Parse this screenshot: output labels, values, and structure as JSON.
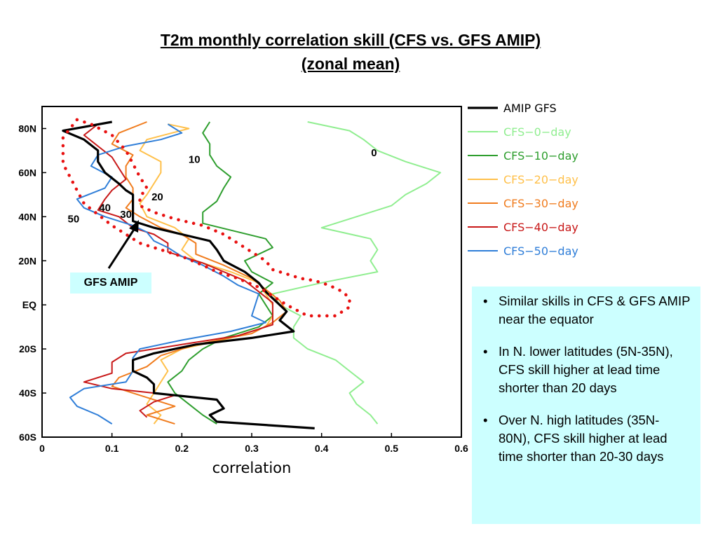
{
  "slide": {
    "title_line1": "T2m monthly correlation skill (CFS vs. GFS AMIP)",
    "title_line2": "(zonal mean)",
    "notes": [
      "Similar skills in CFS & GFS AMIP near the equator",
      "In N. lower latitudes (5N-35N), CFS skill higher at lead time shorter than 20 days",
      "Over N. high latitudes (35N-80N), CFS skill higher at lead time shorter than 20-30 days"
    ],
    "callout": "GFS AMIP"
  },
  "chart_data": {
    "type": "line",
    "title": "",
    "xlabel": "correlation",
    "ylabel": "",
    "xlim": [
      0,
      0.6
    ],
    "ylim": [
      -60,
      90
    ],
    "x_ticks": [
      0,
      0.1,
      0.2,
      0.3,
      0.4,
      0.5,
      0.6
    ],
    "x_tick_labels": [
      "0",
      "0.1",
      "0.2",
      "0.3",
      "0.4",
      "0.5",
      "0.6"
    ],
    "y_ticks": [
      -60,
      -40,
      -20,
      0,
      20,
      40,
      60,
      80
    ],
    "y_tick_labels": [
      "60S",
      "40S",
      "20S",
      "EQ",
      "20N",
      "40N",
      "60N",
      "80N"
    ],
    "legend_position": "right",
    "grid": false,
    "series": [
      {
        "name": "AMIP  GFS",
        "color": "#000000",
        "points": [
          [
            0.1,
            83
          ],
          [
            0.03,
            79
          ],
          [
            0.06,
            75
          ],
          [
            0.08,
            70
          ],
          [
            0.08,
            65
          ],
          [
            0.09,
            60
          ],
          [
            0.11,
            55
          ],
          [
            0.12,
            52
          ],
          [
            0.13,
            50
          ],
          [
            0.13,
            46
          ],
          [
            0.13,
            42
          ],
          [
            0.13,
            38
          ],
          [
            0.16,
            35
          ],
          [
            0.2,
            32
          ],
          [
            0.24,
            29
          ],
          [
            0.25,
            25
          ],
          [
            0.26,
            20
          ],
          [
            0.29,
            15
          ],
          [
            0.31,
            10
          ],
          [
            0.32,
            6
          ],
          [
            0.33,
            3
          ],
          [
            0.34,
            0
          ],
          [
            0.35,
            -3
          ],
          [
            0.34,
            -7
          ],
          [
            0.36,
            -12
          ],
          [
            0.3,
            -15
          ],
          [
            0.22,
            -18
          ],
          [
            0.16,
            -22
          ],
          [
            0.13,
            -25
          ],
          [
            0.13,
            -30
          ],
          [
            0.15,
            -33
          ],
          [
            0.16,
            -36
          ],
          [
            0.16,
            -40
          ],
          [
            0.25,
            -43
          ],
          [
            0.26,
            -47
          ],
          [
            0.24,
            -50
          ],
          [
            0.25,
            -53
          ],
          [
            0.39,
            -56
          ]
        ]
      },
      {
        "name": "CFS−0−day",
        "color": "#90ee90",
        "points": [
          [
            0.38,
            83
          ],
          [
            0.44,
            79
          ],
          [
            0.46,
            75
          ],
          [
            0.48,
            70
          ],
          [
            0.52,
            65
          ],
          [
            0.57,
            60
          ],
          [
            0.55,
            55
          ],
          [
            0.52,
            50
          ],
          [
            0.5,
            45
          ],
          [
            0.45,
            40
          ],
          [
            0.4,
            35
          ],
          [
            0.47,
            30
          ],
          [
            0.48,
            25
          ],
          [
            0.47,
            20
          ],
          [
            0.48,
            15
          ],
          [
            0.4,
            10
          ],
          [
            0.33,
            5
          ],
          [
            0.34,
            0
          ],
          [
            0.37,
            -5
          ],
          [
            0.36,
            -10
          ],
          [
            0.36,
            -15
          ],
          [
            0.38,
            -20
          ],
          [
            0.42,
            -25
          ],
          [
            0.44,
            -30
          ],
          [
            0.46,
            -35
          ],
          [
            0.44,
            -40
          ],
          [
            0.45,
            -45
          ],
          [
            0.47,
            -50
          ],
          [
            0.48,
            -54
          ]
        ]
      },
      {
        "name": "CFS−10−day",
        "color": "#2e9e2e",
        "points": [
          [
            0.24,
            83
          ],
          [
            0.23,
            78
          ],
          [
            0.24,
            73
          ],
          [
            0.24,
            68
          ],
          [
            0.25,
            63
          ],
          [
            0.27,
            58
          ],
          [
            0.26,
            53
          ],
          [
            0.25,
            47
          ],
          [
            0.23,
            42
          ],
          [
            0.23,
            37
          ],
          [
            0.32,
            30
          ],
          [
            0.33,
            26
          ],
          [
            0.29,
            20
          ],
          [
            0.3,
            15
          ],
          [
            0.33,
            10
          ],
          [
            0.31,
            5
          ],
          [
            0.32,
            0
          ],
          [
            0.33,
            -5
          ],
          [
            0.31,
            -10
          ],
          [
            0.26,
            -15
          ],
          [
            0.23,
            -20
          ],
          [
            0.21,
            -25
          ],
          [
            0.2,
            -30
          ],
          [
            0.18,
            -35
          ],
          [
            0.19,
            -40
          ],
          [
            0.21,
            -45
          ],
          [
            0.23,
            -50
          ],
          [
            0.25,
            -54
          ]
        ]
      },
      {
        "name": "CFS−20−day",
        "color": "#ffc04a",
        "points": [
          [
            0.18,
            82
          ],
          [
            0.21,
            80
          ],
          [
            0.15,
            75
          ],
          [
            0.14,
            70
          ],
          [
            0.17,
            65
          ],
          [
            0.17,
            60
          ],
          [
            0.16,
            55
          ],
          [
            0.15,
            50
          ],
          [
            0.14,
            46
          ],
          [
            0.15,
            40
          ],
          [
            0.19,
            35
          ],
          [
            0.21,
            30
          ],
          [
            0.2,
            25
          ],
          [
            0.22,
            20
          ],
          [
            0.27,
            15
          ],
          [
            0.31,
            10
          ],
          [
            0.32,
            5
          ],
          [
            0.33,
            0
          ],
          [
            0.33,
            -5
          ],
          [
            0.32,
            -10
          ],
          [
            0.27,
            -15
          ],
          [
            0.2,
            -20
          ],
          [
            0.17,
            -25
          ],
          [
            0.18,
            -30
          ],
          [
            0.17,
            -35
          ],
          [
            0.16,
            -40
          ],
          [
            0.15,
            -45
          ],
          [
            0.17,
            -50
          ],
          [
            0.16,
            -54
          ]
        ]
      },
      {
        "name": "CFS−30−day",
        "color": "#f07c1e",
        "points": [
          [
            0.15,
            83
          ],
          [
            0.11,
            78
          ],
          [
            0.1,
            73
          ],
          [
            0.13,
            68
          ],
          [
            0.12,
            63
          ],
          [
            0.12,
            58
          ],
          [
            0.13,
            53
          ],
          [
            0.13,
            48
          ],
          [
            0.12,
            44
          ],
          [
            0.14,
            40
          ],
          [
            0.17,
            35
          ],
          [
            0.2,
            32
          ],
          [
            0.22,
            28
          ],
          [
            0.22,
            23
          ],
          [
            0.26,
            18
          ],
          [
            0.3,
            12
          ],
          [
            0.32,
            7
          ],
          [
            0.34,
            2
          ],
          [
            0.35,
            -3
          ],
          [
            0.33,
            -8
          ],
          [
            0.3,
            -13
          ],
          [
            0.22,
            -18
          ],
          [
            0.17,
            -23
          ],
          [
            0.15,
            -28
          ],
          [
            0.11,
            -33
          ],
          [
            0.1,
            -37
          ],
          [
            0.15,
            -42
          ],
          [
            0.19,
            -46
          ],
          [
            0.15,
            -50
          ],
          [
            0.19,
            -54
          ]
        ]
      },
      {
        "name": "CFS−40−day",
        "color": "#c81818",
        "points": [
          [
            0.08,
            82
          ],
          [
            0.06,
            77
          ],
          [
            0.08,
            72
          ],
          [
            0.1,
            67
          ],
          [
            0.11,
            62
          ],
          [
            0.12,
            57
          ],
          [
            0.1,
            52
          ],
          [
            0.09,
            48
          ],
          [
            0.08,
            43
          ],
          [
            0.11,
            40
          ],
          [
            0.13,
            35
          ],
          [
            0.16,
            32
          ],
          [
            0.18,
            28
          ],
          [
            0.18,
            24
          ],
          [
            0.23,
            19
          ],
          [
            0.26,
            15
          ],
          [
            0.29,
            11
          ],
          [
            0.31,
            6
          ],
          [
            0.33,
            1
          ],
          [
            0.33,
            -4
          ],
          [
            0.33,
            -9
          ],
          [
            0.28,
            -14
          ],
          [
            0.2,
            -18
          ],
          [
            0.12,
            -22
          ],
          [
            0.1,
            -26
          ],
          [
            0.1,
            -31
          ],
          [
            0.06,
            -35
          ],
          [
            0.1,
            -38
          ],
          [
            0.19,
            -41
          ],
          [
            0.16,
            -44
          ],
          [
            0.14,
            -48
          ],
          [
            0.15,
            -51
          ]
        ]
      },
      {
        "name": "CFS−50−day",
        "color": "#2f7ed8",
        "points": [
          [
            0.18,
            82
          ],
          [
            0.2,
            78
          ],
          [
            0.17,
            75
          ],
          [
            0.12,
            72
          ],
          [
            0.08,
            68
          ],
          [
            0.07,
            63
          ],
          [
            0.1,
            58
          ],
          [
            0.09,
            53
          ],
          [
            0.05,
            48
          ],
          [
            0.06,
            44
          ],
          [
            0.09,
            40
          ],
          [
            0.13,
            36
          ],
          [
            0.15,
            33
          ],
          [
            0.16,
            29
          ],
          [
            0.18,
            26
          ],
          [
            0.2,
            22
          ],
          [
            0.23,
            18
          ],
          [
            0.26,
            13
          ],
          [
            0.28,
            9
          ],
          [
            0.31,
            5
          ],
          [
            0.3,
            -5
          ],
          [
            0.32,
            -8
          ],
          [
            0.27,
            -12
          ],
          [
            0.2,
            -16
          ],
          [
            0.14,
            -20
          ],
          [
            0.13,
            -24
          ],
          [
            0.13,
            -30
          ],
          [
            0.12,
            -35
          ],
          [
            0.06,
            -38
          ],
          [
            0.04,
            -42
          ],
          [
            0.05,
            -46
          ],
          [
            0.08,
            -50
          ],
          [
            0.1,
            -54
          ]
        ]
      }
    ],
    "envelope": {
      "color": "#e81010",
      "points": [
        [
          0.05,
          84
        ],
        [
          0.07,
          82
        ],
        [
          0.1,
          77
        ],
        [
          0.12,
          70
        ],
        [
          0.13,
          64
        ],
        [
          0.14,
          58
        ],
        [
          0.15,
          53
        ],
        [
          0.14,
          49
        ],
        [
          0.14,
          45
        ],
        [
          0.16,
          42
        ],
        [
          0.19,
          39
        ],
        [
          0.23,
          36
        ],
        [
          0.26,
          32
        ],
        [
          0.28,
          28
        ],
        [
          0.3,
          24
        ],
        [
          0.32,
          20
        ],
        [
          0.33,
          16
        ],
        [
          0.35,
          14
        ],
        [
          0.37,
          12
        ],
        [
          0.39,
          11
        ],
        [
          0.41,
          9
        ],
        [
          0.43,
          6
        ],
        [
          0.44,
          3
        ],
        [
          0.44,
          -1
        ],
        [
          0.42,
          -5
        ],
        [
          0.38,
          -5
        ],
        [
          0.35,
          0
        ],
        [
          0.33,
          4
        ],
        [
          0.31,
          8
        ],
        [
          0.28,
          12
        ],
        [
          0.25,
          15
        ],
        [
          0.23,
          18
        ],
        [
          0.2,
          22
        ],
        [
          0.17,
          25
        ],
        [
          0.14,
          28
        ],
        [
          0.12,
          32
        ],
        [
          0.1,
          36
        ],
        [
          0.08,
          41
        ],
        [
          0.06,
          46
        ],
        [
          0.05,
          52
        ],
        [
          0.04,
          58
        ],
        [
          0.03,
          64
        ],
        [
          0.03,
          70
        ],
        [
          0.03,
          76
        ],
        [
          0.04,
          80
        ],
        [
          0.05,
          84
        ]
      ]
    },
    "annotations": [
      {
        "text": "0",
        "x": 0.475,
        "y": 69
      },
      {
        "text": "10",
        "x": 0.218,
        "y": 66
      },
      {
        "text": "20",
        "x": 0.165,
        "y": 49
      },
      {
        "text": "40",
        "x": 0.09,
        "y": 44
      },
      {
        "text": "30",
        "x": 0.12,
        "y": 41
      },
      {
        "text": "50",
        "x": 0.045,
        "y": 39
      }
    ]
  }
}
